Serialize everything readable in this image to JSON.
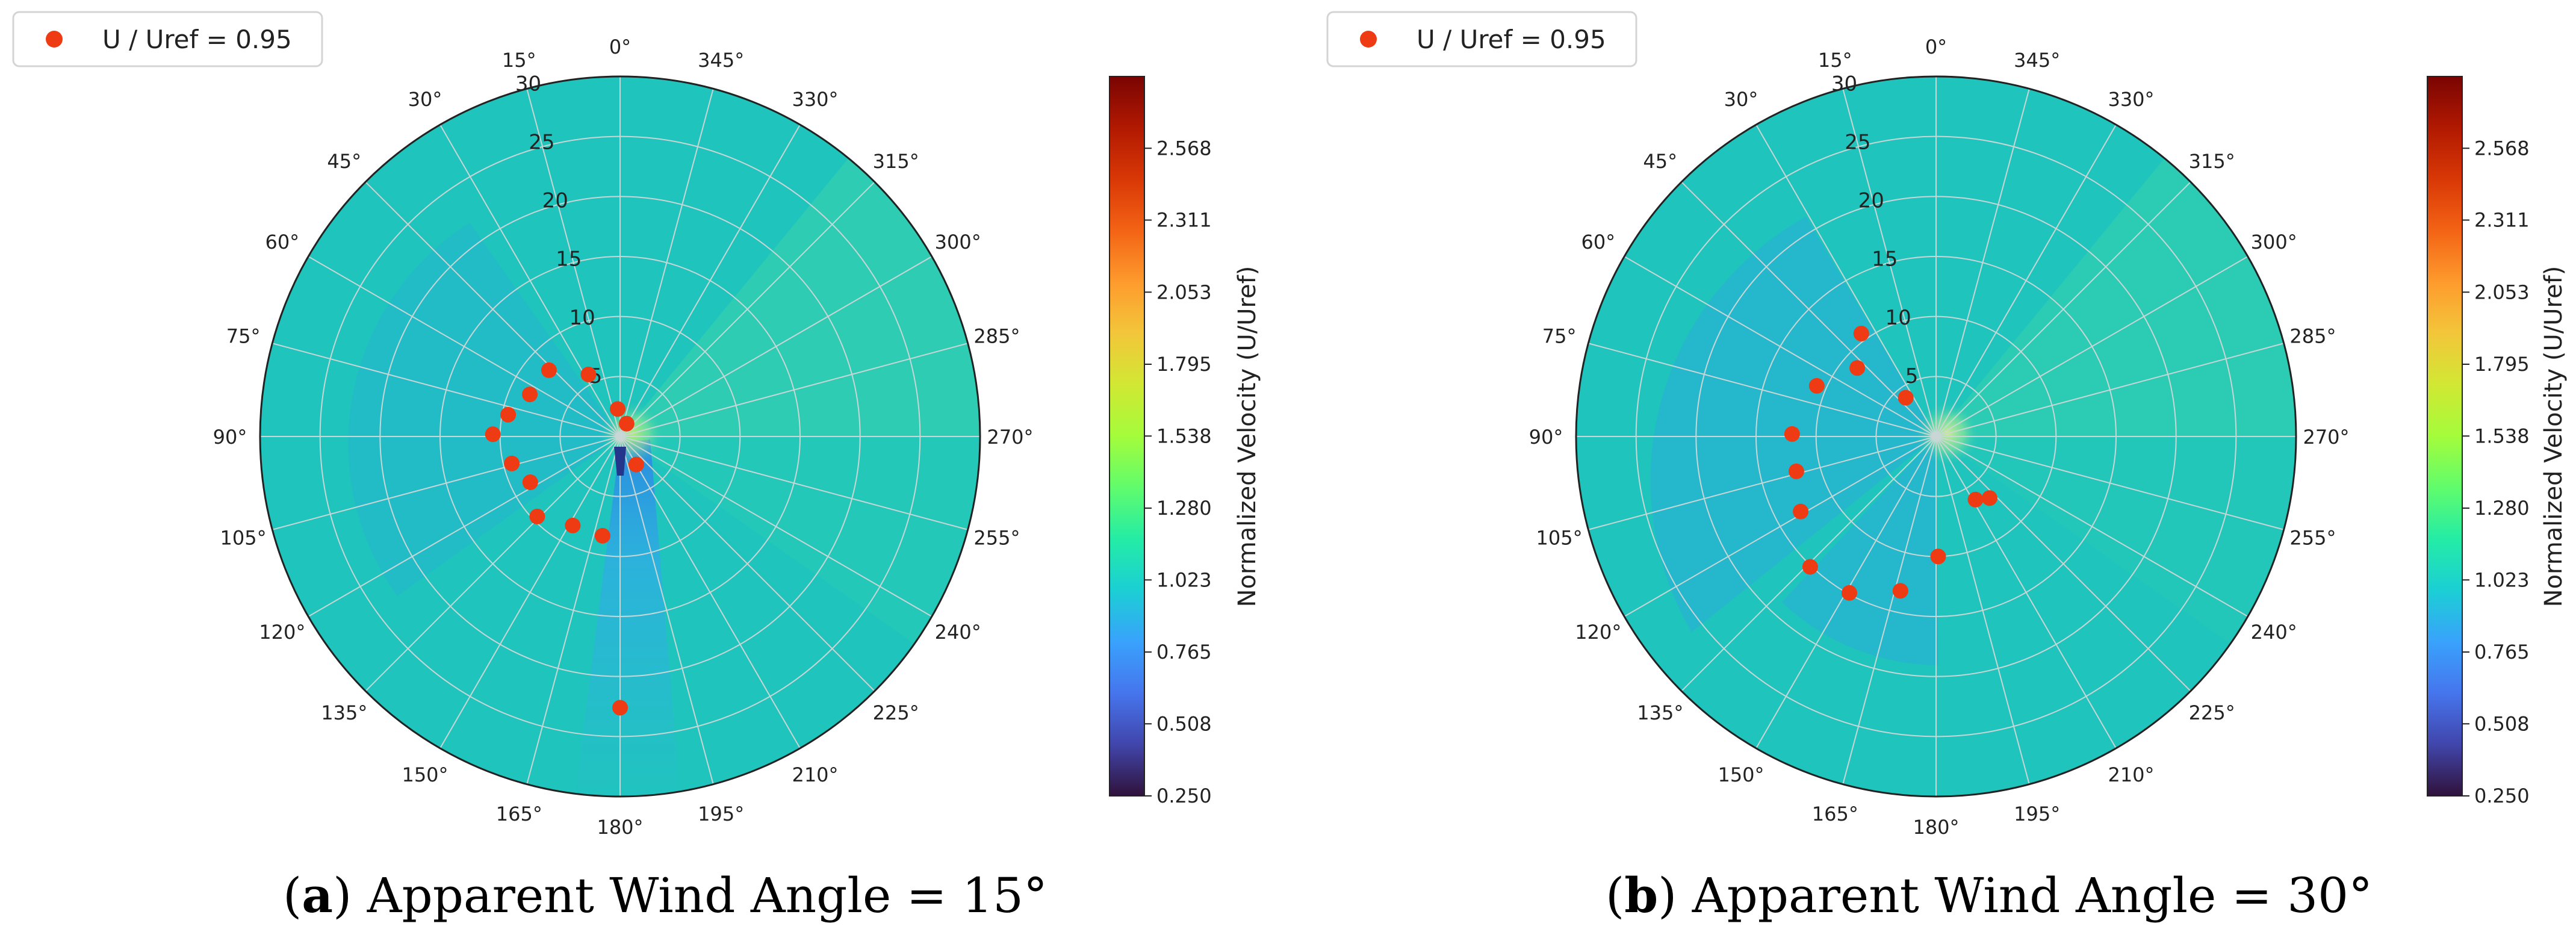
{
  "colors": {
    "marker": "#ee3b14",
    "field": "#1fc4bc",
    "grid": "#c8d6d6",
    "colormap": [
      "#30123b",
      "#4145ab",
      "#4675ed",
      "#39a2fc",
      "#1bcfd4",
      "#24eca6",
      "#61fc6c",
      "#a4fc3b",
      "#d1e834",
      "#f3c63a",
      "#fe9b2d",
      "#f36315",
      "#d93806",
      "#b11901",
      "#7a0402"
    ]
  },
  "chart_data": [
    {
      "type": "scatter",
      "projection": "polar",
      "theta_zero": "top",
      "theta_direction": "counterclockwise",
      "theta_ticks": [
        "0°",
        "15°",
        "30°",
        "45°",
        "60°",
        "75°",
        "90°",
        "105°",
        "120°",
        "135°",
        "150°",
        "165°",
        "180°",
        "195°",
        "210°",
        "225°",
        "240°",
        "255°",
        "270°",
        "285°",
        "300°",
        "315°",
        "330°",
        "345°"
      ],
      "r_ticks": [
        "5",
        "10",
        "15",
        "20",
        "25",
        "30"
      ],
      "rlim": [
        0,
        30
      ],
      "grid": true,
      "legend": {
        "label": "U / Uref = 0.95",
        "placement": "top-left"
      },
      "colorbar": {
        "label": "Normalized Velocity (U/Uref)",
        "ticks": [
          "2.568",
          "2.311",
          "2.053",
          "1.795",
          "1.538",
          "1.280",
          "1.023",
          "0.765",
          "0.508",
          "0.250"
        ],
        "range": [
          0.25,
          2.825
        ]
      },
      "series": [
        {
          "name": "U / Uref = 0.95",
          "points": [
            {
              "theta": 333,
              "r": 1.2
            },
            {
              "theta": 5,
              "r": 2.3
            },
            {
              "theta": 27,
              "r": 5.8
            },
            {
              "theta": 47,
              "r": 8.1
            },
            {
              "theta": 65,
              "r": 8.3
            },
            {
              "theta": 79,
              "r": 9.5
            },
            {
              "theta": 89,
              "r": 10.6
            },
            {
              "theta": 104,
              "r": 9.3
            },
            {
              "theta": 117,
              "r": 8.4
            },
            {
              "theta": 134,
              "r": 9.6
            },
            {
              "theta": 152,
              "r": 8.4
            },
            {
              "theta": 170,
              "r": 8.4
            },
            {
              "theta": 210,
              "r": 2.7
            },
            {
              "theta": 180,
              "r": 22.6
            }
          ]
        }
      ]
    },
    {
      "type": "scatter",
      "projection": "polar",
      "theta_zero": "top",
      "theta_direction": "counterclockwise",
      "theta_ticks": [
        "0°",
        "15°",
        "30°",
        "45°",
        "60°",
        "75°",
        "90°",
        "105°",
        "120°",
        "135°",
        "150°",
        "165°",
        "180°",
        "195°",
        "210°",
        "225°",
        "240°",
        "255°",
        "270°",
        "285°",
        "300°",
        "315°",
        "330°",
        "345°"
      ],
      "r_ticks": [
        "5",
        "10",
        "15",
        "20",
        "25",
        "30"
      ],
      "rlim": [
        0,
        30
      ],
      "grid": true,
      "legend": {
        "label": "U / Uref = 0.95",
        "placement": "top-left"
      },
      "colorbar": {
        "label": "Normalized Velocity (U/Uref)",
        "ticks": [
          "2.568",
          "2.311",
          "2.053",
          "1.795",
          "1.538",
          "1.280",
          "1.023",
          "0.765",
          "0.508",
          "0.250"
        ],
        "range": [
          0.25,
          2.825
        ]
      },
      "series": [
        {
          "name": "U / Uref = 0.95",
          "points": [
            {
              "theta": 38,
              "r": 4.1
            },
            {
              "theta": 36,
              "r": 10.6
            },
            {
              "theta": 49,
              "r": 8.7
            },
            {
              "theta": 67,
              "r": 10.8
            },
            {
              "theta": 89,
              "r": 12.0
            },
            {
              "theta": 104,
              "r": 12.0
            },
            {
              "theta": 119,
              "r": 12.9
            },
            {
              "theta": 136,
              "r": 15.1
            },
            {
              "theta": 151,
              "r": 14.9
            },
            {
              "theta": 167,
              "r": 13.2
            },
            {
              "theta": 181,
              "r": 10.0
            },
            {
              "theta": 212,
              "r": 6.2
            },
            {
              "theta": 221,
              "r": 6.8
            }
          ]
        }
      ]
    }
  ],
  "captions": [
    {
      "letter": "a",
      "text": "Apparent Wind Angle = 15°"
    },
    {
      "letter": "b",
      "text": "Apparent Wind Angle = 30°"
    }
  ]
}
